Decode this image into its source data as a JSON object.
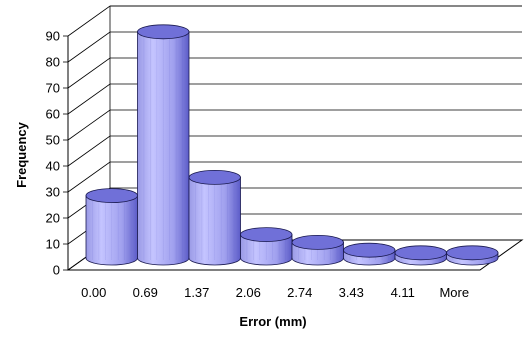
{
  "chart_data": {
    "type": "bar",
    "style": "3d-cylinder",
    "categories": [
      "0.00",
      "0.69",
      "1.37",
      "2.06",
      "2.74",
      "3.43",
      "4.11",
      "More"
    ],
    "values": [
      24,
      87,
      31,
      9,
      6,
      3,
      2,
      2
    ],
    "xlabel": "Error (mm)",
    "ylabel": "Frequency",
    "ylim": [
      0,
      90
    ],
    "yticks": [
      0,
      10,
      20,
      30,
      40,
      50,
      60,
      70,
      80,
      90
    ],
    "grid": true,
    "legend": "none",
    "colors": {
      "bar": "#a4a4f0",
      "bar_light": "#c4c4ff",
      "bar_dark": "#5a5ac6",
      "bar_top": "#7070d8",
      "bar_edge": "#1a1a50",
      "grid": "#000000"
    }
  }
}
